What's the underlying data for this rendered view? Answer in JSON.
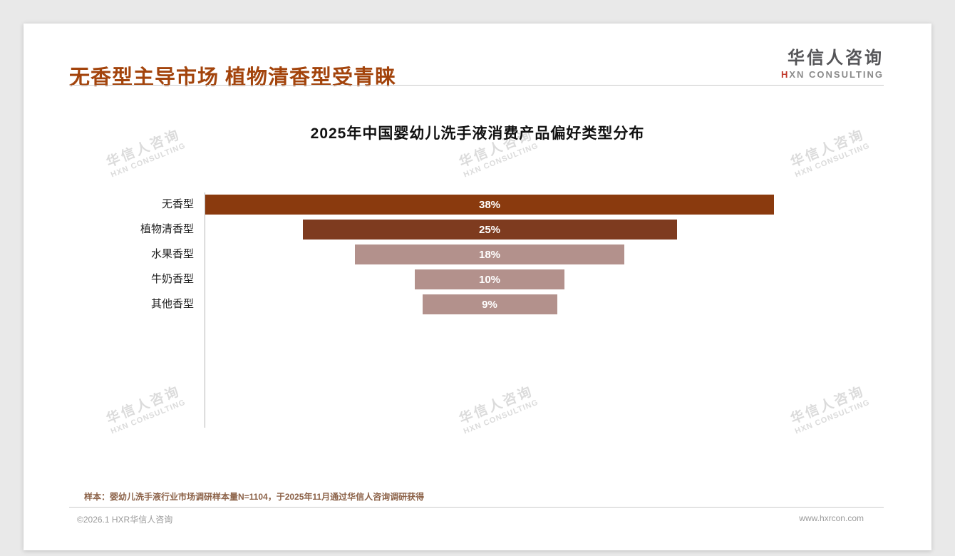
{
  "page": {
    "title": "无香型主导市场 植物清香型受青睐",
    "footer_note": "样本：婴幼儿洗手液行业市场调研样本量N=1104，于2025年11月通过华信人咨询调研获得",
    "copyright": "©2026.1 HXR华信人咨询",
    "website": "www.hxrcon.com"
  },
  "logo": {
    "name": "华信人咨询",
    "subtitle": "HXN CONSULTING"
  },
  "watermark": {
    "line1": "华信人咨询",
    "line2": "HXN CONSULTING"
  },
  "colors": {
    "accent": "#a3440c",
    "dark_bar_1": "#8a3a0e",
    "dark_bar_2": "#7e3b1f",
    "light_bar": "#b3918c"
  },
  "chart_data": {
    "type": "bar",
    "orientation": "horizontal-centered-funnel",
    "title": "2025年中国婴幼儿洗手液消费产品偏好类型分布",
    "categories": [
      "无香型",
      "植物清香型",
      "水果香型",
      "牛奶香型",
      "其他香型"
    ],
    "values": [
      38,
      25,
      18,
      10,
      9
    ],
    "value_labels": [
      "38%",
      "25%",
      "18%",
      "10%",
      "9%"
    ],
    "bar_colors": [
      "#8a3a0e",
      "#7e3b1f",
      "#b3918c",
      "#b3918c",
      "#b3918c"
    ],
    "unit": "%",
    "xlim": [
      0,
      40
    ],
    "grid": false,
    "legend": false,
    "value_label_position": "inside-center"
  }
}
